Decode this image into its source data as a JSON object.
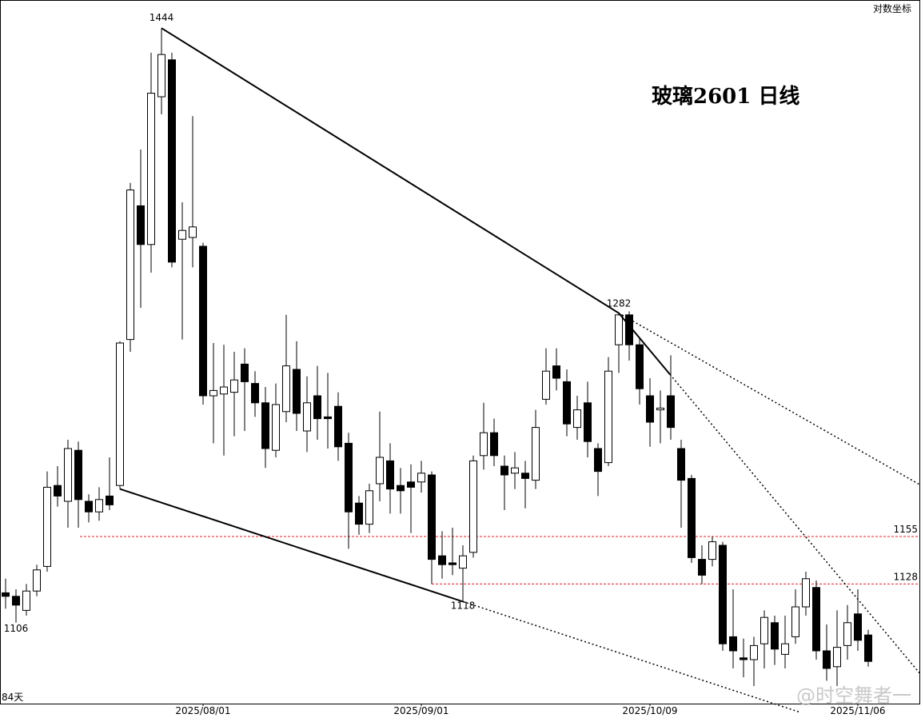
{
  "chart_data": {
    "type": "candlestick",
    "title": "玻璃2601  日线",
    "scale_toggle": "对数坐标",
    "period_label": "84天",
    "watermark": "@时空舞者一",
    "categories": [
      null,
      null,
      null,
      null,
      null,
      null,
      null,
      null,
      null,
      null,
      null,
      null,
      null,
      null,
      null,
      null,
      null,
      null,
      null,
      "2025/08/01",
      null,
      null,
      null,
      null,
      null,
      null,
      null,
      null,
      null,
      null,
      null,
      null,
      null,
      null,
      null,
      null,
      null,
      null,
      null,
      null,
      "2025/09/01",
      null,
      null,
      null,
      null,
      null,
      null,
      null,
      null,
      null,
      null,
      null,
      null,
      null,
      null,
      null,
      null,
      null,
      null,
      null,
      null,
      null,
      "2025/10/09",
      null,
      null,
      null,
      null,
      null,
      null,
      null,
      null,
      null,
      null,
      null,
      null,
      null,
      null,
      null,
      null,
      null,
      null,
      null,
      "2025/11/06",
      null
    ],
    "open": [
      1123,
      1121,
      1113,
      1124,
      1138,
      1184,
      1175,
      1204,
      1175,
      1169,
      1178,
      1184,
      1267,
      1343,
      1321,
      1405,
      1426,
      1324,
      1325,
      1320,
      1235,
      1236,
      1237,
      1253,
      1242,
      1231,
      1204,
      1226,
      1250,
      1215,
      1235,
      1223,
      1229,
      1208,
      1174,
      1162,
      1185,
      1198,
      1184,
      1186,
      1186,
      1190,
      1144,
      1140,
      1137,
      1146,
      1201,
      1214,
      1195,
      1191,
      1191,
      1187,
      1233,
      1252,
      1243,
      1217,
      1231,
      1205,
      1197,
      1264,
      1281,
      1264,
      1235,
      1227,
      1235,
      1205,
      1188,
      1142,
      1142,
      1150,
      1098,
      1086,
      1085,
      1094,
      1106,
      1088,
      1098,
      1115,
      1126,
      1090,
      1081,
      1093,
      1111,
      1099
    ],
    "high": [
      1131,
      1125,
      1128,
      1139,
      1192,
      1195,
      1210,
      1209,
      1179,
      1183,
      1200,
      1266,
      1356,
      1375,
      1430,
      1444,
      1430,
      1345,
      1394,
      1322,
      1265,
      1264,
      1260,
      1262,
      1249,
      1240,
      1242,
      1281,
      1266,
      1246,
      1252,
      1248,
      1237,
      1214,
      1178,
      1185,
      1226,
      1208,
      1194,
      1196,
      1198,
      1192,
      1158,
      1160,
      1150,
      1201,
      1231,
      1222,
      1201,
      1203,
      1198,
      1227,
      1262,
      1262,
      1250,
      1235,
      1243,
      1208,
      1257,
      1282,
      1283,
      1268,
      1245,
      1238,
      1258,
      1210,
      1190,
      1150,
      1155,
      1152,
      1125,
      1097,
      1098,
      1113,
      1110,
      1110,
      1125,
      1135,
      1130,
      1105,
      1113,
      1116,
      1125,
      1102
    ],
    "low": [
      1114,
      1106,
      1110,
      1121,
      1135,
      1172,
      1160,
      1160,
      1163,
      1164,
      1170,
      1182,
      1260,
      1285,
      1305,
      1395,
      1308,
      1267,
      1308,
      1230,
      1208,
      1201,
      1212,
      1215,
      1223,
      1194,
      1200,
      1220,
      1215,
      1203,
      1210,
      1205,
      1198,
      1148,
      1156,
      1157,
      1175,
      1168,
      1168,
      1157,
      1180,
      1128,
      1131,
      1133,
      1118,
      1143,
      1193,
      1195,
      1170,
      1182,
      1171,
      1182,
      1230,
      1238,
      1212,
      1210,
      1200,
      1178,
      1195,
      1248,
      1255,
      1230,
      1206,
      1208,
      1210,
      1160,
      1140,
      1128,
      1138,
      1090,
      1080,
      1075,
      1070,
      1080,
      1082,
      1080,
      1094,
      1110,
      1085,
      1073,
      1070,
      1085,
      1090,
      1081
    ],
    "close": [
      1121,
      1116,
      1124,
      1136,
      1183,
      1178,
      1205,
      1176,
      1169,
      1176,
      1173,
      1265,
      1352,
      1321,
      1407,
      1429,
      1311,
      1329,
      1331,
      1235,
      1238,
      1240,
      1244,
      1243,
      1231,
      1205,
      1230,
      1252,
      1225,
      1231,
      1222,
      1222,
      1206,
      1169,
      1162,
      1181,
      1200,
      1182,
      1181,
      1183,
      1191,
      1142,
      1139,
      1139,
      1144,
      1198,
      1214,
      1201,
      1190,
      1194,
      1188,
      1217,
      1249,
      1245,
      1219,
      1227,
      1209,
      1192,
      1249,
      1281,
      1264,
      1239,
      1220,
      1228,
      1217,
      1187,
      1143,
      1133,
      1152,
      1094,
      1090,
      1085,
      1093,
      1109,
      1091,
      1094,
      1115,
      1131,
      1090,
      1080,
      1092,
      1106,
      1096,
      1084
    ],
    "up_color": "#ffffff",
    "down_color": "#000000",
    "levels": [
      1155,
      1128
    ],
    "level_color": "#e02020",
    "ylim": [
      1060,
      1460
    ]
  }
}
